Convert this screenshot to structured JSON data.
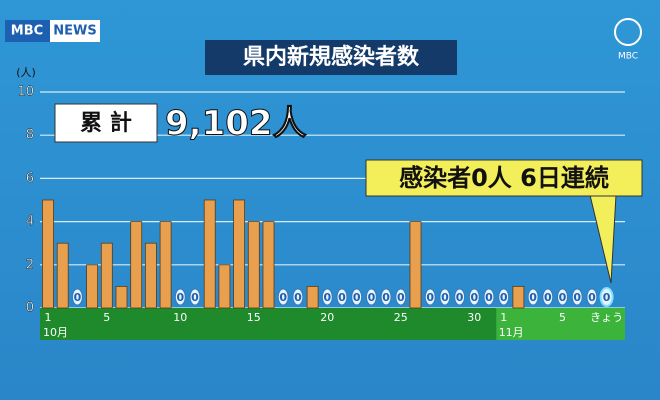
{
  "branding": {
    "logo_left": "MBC",
    "logo_news": "NEWS",
    "logo_right": "MBC"
  },
  "chart_data": {
    "type": "bar",
    "title": "県内新規感染者数",
    "y_unit": "(人)",
    "total_label": "累 計",
    "total_value": "9,102人",
    "callout": "感染者0人 6日連続",
    "categories": [
      "1",
      null,
      null,
      null,
      "5",
      null,
      null,
      null,
      null,
      "10",
      null,
      null,
      null,
      null,
      "15",
      null,
      null,
      null,
      null,
      "20",
      null,
      null,
      null,
      null,
      "25",
      null,
      null,
      null,
      null,
      "30",
      null,
      "1",
      null,
      null,
      null,
      "5",
      null,
      null,
      "きょう"
    ],
    "month_labels": [
      "10月",
      "11月"
    ],
    "values": [
      5,
      3,
      0,
      2,
      3,
      1,
      4,
      3,
      4,
      0,
      0,
      5,
      2,
      5,
      4,
      4,
      0,
      0,
      1,
      0,
      0,
      0,
      0,
      0,
      0,
      4,
      0,
      0,
      0,
      0,
      0,
      0,
      1,
      0,
      0,
      0,
      0,
      0,
      0
    ],
    "color": "#e8a04e",
    "ylim": [
      0,
      10
    ],
    "yticks": [
      0,
      2,
      4,
      6,
      8,
      10
    ],
    "grid": true
  }
}
